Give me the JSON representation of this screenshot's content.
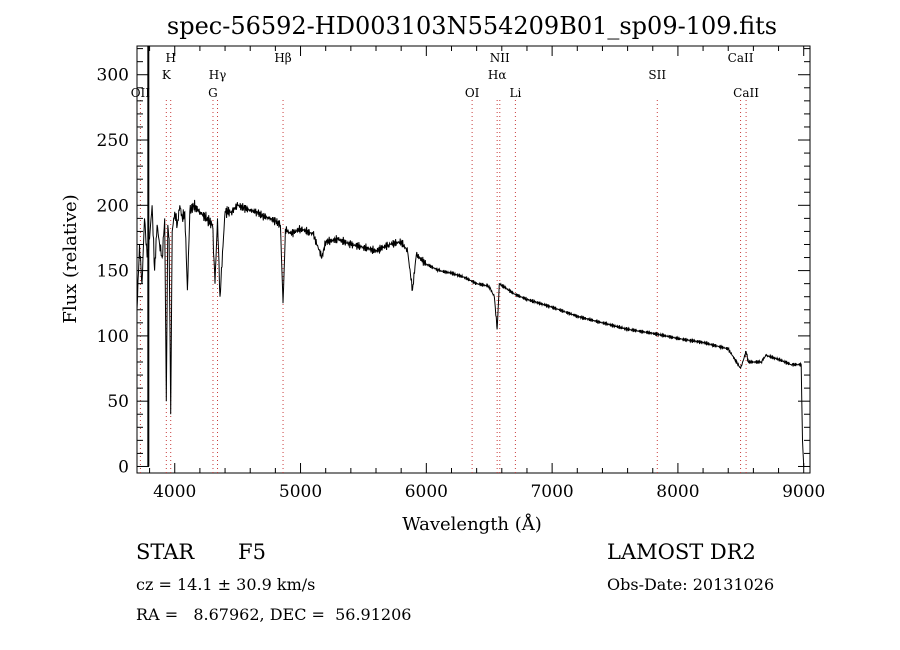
{
  "chart_data": {
    "type": "line",
    "title": "spec-56592-HD003103N554209B01_sp09-109.fits",
    "xlabel": "Wavelength (Å)",
    "ylabel": "Flux (relative)",
    "xlim": [
      3700,
      9050
    ],
    "ylim": [
      -5,
      322
    ],
    "xticks": [
      4000,
      5000,
      6000,
      7000,
      8000,
      9000
    ],
    "yticks": [
      0,
      50,
      100,
      150,
      200,
      250,
      300
    ],
    "grid": false,
    "series": [
      {
        "x": [
          3700,
          3720,
          3740,
          3760,
          3780,
          3800,
          3820,
          3840,
          3860,
          3880,
          3900,
          3920,
          3933,
          3945,
          3955,
          3968,
          3980,
          4000,
          4020,
          4040,
          4060,
          4080,
          4101,
          4120,
          4150,
          4200,
          4250,
          4300,
          4320,
          4340,
          4360,
          4400,
          4450,
          4500,
          4550,
          4600,
          4650,
          4700,
          4750,
          4800,
          4840,
          4861,
          4880,
          4920,
          5000,
          5100,
          5170,
          5200,
          5300,
          5400,
          5500,
          5600,
          5700,
          5800,
          5850,
          5890,
          5920,
          6000,
          6100,
          6200,
          6300,
          6400,
          6500,
          6540,
          6563,
          6580,
          6700,
          6800,
          7000,
          7200,
          7400,
          7600,
          7800,
          8000,
          8200,
          8400,
          8498,
          8542,
          8560,
          8662,
          8700,
          8800,
          8900,
          8980,
          8990,
          9000
        ],
        "values": [
          120,
          170,
          140,
          190,
          160,
          175,
          200,
          150,
          185,
          170,
          160,
          190,
          50,
          185,
          175,
          40,
          180,
          195,
          185,
          200,
          190,
          195,
          135,
          195,
          200,
          195,
          190,
          185,
          140,
          190,
          130,
          195,
          195,
          200,
          198,
          196,
          195,
          192,
          190,
          188,
          185,
          125,
          182,
          178,
          182,
          178,
          160,
          172,
          174,
          170,
          168,
          165,
          170,
          172,
          165,
          135,
          162,
          155,
          150,
          148,
          145,
          140,
          138,
          130,
          105,
          140,
          132,
          128,
          122,
          115,
          110,
          105,
          102,
          98,
          95,
          90,
          75,
          88,
          80,
          80,
          85,
          82,
          78,
          78,
          20,
          0
        ]
      }
    ],
    "line_labels": [
      {
        "name": "OII",
        "wavelength": 3727,
        "row": 2
      },
      {
        "name": "H",
        "wavelength": 3968,
        "row": 0
      },
      {
        "name": "K",
        "wavelength": 3933,
        "row": 1
      },
      {
        "name": "Hγ",
        "wavelength": 4340,
        "row": 1
      },
      {
        "name": "G",
        "wavelength": 4304,
        "row": 2
      },
      {
        "name": "Hβ",
        "wavelength": 4861,
        "row": 0
      },
      {
        "name": "NII",
        "wavelength": 6584,
        "row": 0
      },
      {
        "name": "Hα",
        "wavelength": 6563,
        "row": 1
      },
      {
        "name": "OI",
        "wavelength": 6364,
        "row": 2
      },
      {
        "name": "Li",
        "wavelength": 6708,
        "row": 2
      },
      {
        "name": "SII",
        "wavelength": 7836,
        "row": 1
      },
      {
        "name": "CaII",
        "wavelength": 8498,
        "row": 0
      },
      {
        "name": "CaII",
        "wavelength": 8542,
        "row": 2
      }
    ],
    "line_color": "#000000",
    "marker_color": "#c83c3c"
  },
  "info": {
    "class_label": "STAR",
    "subclass": "F5",
    "cz": "cz = 14.1 ± 30.9 km/s",
    "radec": "RA =   8.67962, DEC =  56.91206",
    "survey": "LAMOST DR2",
    "obs_date": "Obs-Date: 20131026"
  }
}
